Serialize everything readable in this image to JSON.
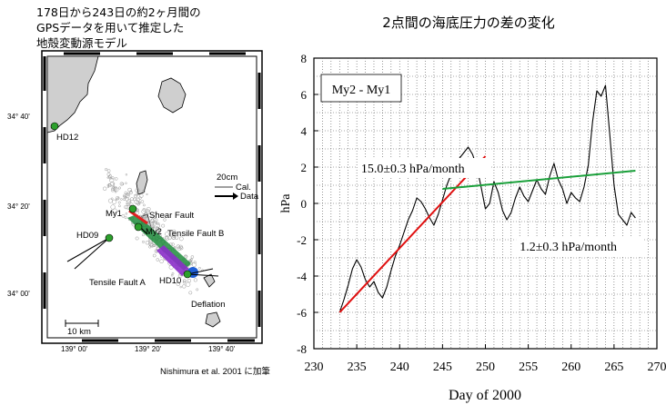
{
  "left_panel": {
    "caption_lines": [
      "178日から243日の約2ヶ月間の",
      "GPSデータを用いて推定した",
      "地殻変動源モデル"
    ],
    "lat_ticks": [
      "34° 40'",
      "34° 20'",
      "34° 00'"
    ],
    "lon_ticks": [
      "139° 00'",
      "139° 20'",
      "139° 40'"
    ],
    "station_labels": {
      "hd12": "HD12",
      "hd09": "HD09",
      "hd10": "HD10",
      "my1": "My1",
      "my2": "My2"
    },
    "source_labels": {
      "shear_fault": "Shear Fault",
      "tensile_fault_b": "Tensile Fault B",
      "tensile_fault_a": "Tensile Fault A",
      "deflation": "Deflation"
    },
    "legend": {
      "scale": "20cm",
      "calc": "Cal.",
      "data": "Data"
    },
    "scale_bar": "10 km",
    "credit": "Nishimura et al. 2001 に加筆",
    "colors": {
      "station": "#2ca02c",
      "shear_fault": "#e02020",
      "tensile_b": "#1e8c3c",
      "tensile_a": "#8b2fc9",
      "deflation": "#1f5fd6"
    }
  },
  "chart_data": {
    "type": "line",
    "title": "2点間の海底圧力の差の変化",
    "xlabel": "Day of 2000",
    "ylabel": "hPa",
    "xlim": [
      230,
      270
    ],
    "ylim": [
      -8,
      8
    ],
    "xticks": [
      230,
      235,
      240,
      245,
      250,
      255,
      260,
      265,
      270
    ],
    "yticks": [
      -8,
      -6,
      -4,
      -2,
      0,
      2,
      4,
      6,
      8
    ],
    "grid": true,
    "legend_box": "My2 - My1",
    "series": [
      {
        "color": "#000000",
        "x": [
          233.0,
          233.5,
          234.0,
          234.5,
          235.0,
          235.5,
          236.0,
          236.5,
          237.0,
          237.5,
          238.0,
          238.5,
          239.0,
          239.5,
          240.0,
          240.5,
          241.0,
          241.5,
          242.0,
          242.5,
          243.0,
          243.5,
          244.0,
          244.5,
          245.0,
          245.5,
          246.0,
          246.5,
          247.0,
          247.5,
          248.0,
          248.5,
          249.0,
          249.5,
          250.0,
          250.5,
          251.0,
          251.5,
          252.0,
          252.5,
          253.0,
          253.5,
          254.0,
          254.5,
          255.0,
          255.5,
          256.0,
          256.5,
          257.0,
          257.5,
          258.0,
          258.5,
          259.0,
          259.5,
          260.0,
          260.5,
          261.0,
          261.5,
          262.0,
          262.5,
          263.0,
          263.5,
          264.0,
          264.5,
          265.0,
          265.5,
          266.0,
          266.5,
          267.0,
          267.5
        ],
        "y": [
          -6.0,
          -5.3,
          -4.5,
          -3.6,
          -3.1,
          -3.5,
          -4.2,
          -4.6,
          -4.3,
          -4.9,
          -5.2,
          -4.6,
          -3.7,
          -2.9,
          -2.3,
          -1.6,
          -0.9,
          -0.4,
          0.3,
          0.1,
          -0.3,
          -0.8,
          -1.2,
          -0.6,
          0.2,
          1.0,
          1.6,
          2.0,
          2.5,
          2.8,
          3.1,
          2.7,
          2.0,
          0.9,
          -0.3,
          0.0,
          1.2,
          0.6,
          -0.4,
          -0.9,
          -0.5,
          0.3,
          0.9,
          0.4,
          0.1,
          0.7,
          1.3,
          0.8,
          0.5,
          1.5,
          2.2,
          1.3,
          0.8,
          0.0,
          0.6,
          0.3,
          0.1,
          0.9,
          2.1,
          4.5,
          6.2,
          5.9,
          6.5,
          3.8,
          1.0,
          -0.6,
          -0.9,
          -1.2,
          -0.5,
          -0.8
        ]
      },
      {
        "color": "#e01010",
        "x": [
          233.0,
          250.0
        ],
        "y": [
          -6.0,
          2.6
        ]
      },
      {
        "color": "#1aa03a",
        "x": [
          245.0,
          267.5
        ],
        "y": [
          0.8,
          1.8
        ]
      }
    ],
    "annotations": [
      {
        "text": "15.0±0.3 hPa/month",
        "x": 235.5,
        "y": 1.7
      },
      {
        "text": "1.2±0.3 hPa/month",
        "x": 254.0,
        "y": -2.6
      }
    ]
  }
}
